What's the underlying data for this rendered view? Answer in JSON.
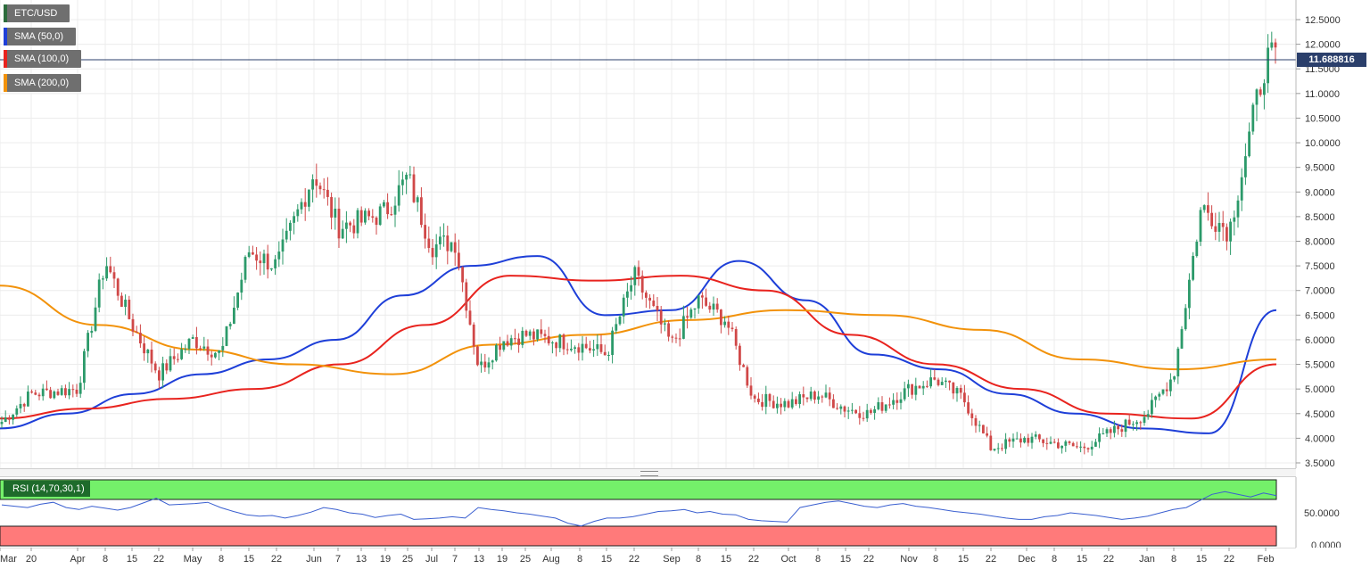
{
  "legend": {
    "symbol": "ETC/USD",
    "sma50": "SMA (50,0)",
    "sma100": "SMA (100,0)",
    "sma200": "SMA (200,0)",
    "rsi": "RSI (14,70,30,1)"
  },
  "current_price_label": "11.688816",
  "colors": {
    "bull": "#2c9a6a",
    "bear": "#d04848",
    "sma50": "#1e3fd8",
    "sma100": "#e8231e",
    "sma200": "#f2920a",
    "rsi_line": "#3a5fd0",
    "overbought_zone": "#74f06a",
    "oversold_zone": "#ff7a7a",
    "price_line": "#2b3f6b"
  },
  "chart_data": [
    {
      "type": "candlestick",
      "title": "ETC/USD",
      "ylim": [
        3.4,
        12.8
      ],
      "y_ticks": [
        "12.5000",
        "12.0000",
        "11.5000",
        "11.0000",
        "10.5000",
        "10.0000",
        "9.5000",
        "9.0000",
        "8.5000",
        "8.0000",
        "7.5000",
        "7.0000",
        "6.5000",
        "6.0000",
        "5.5000",
        "5.0000",
        "4.5000",
        "4.0000",
        "3.5000"
      ],
      "x_tick_labels": [
        "Mar",
        "20",
        "Apr",
        "8",
        "15",
        "22",
        "May",
        "8",
        "15",
        "22",
        "Jun",
        "7",
        "13",
        "19",
        "25",
        "Jul",
        "7",
        "13",
        "19",
        "25",
        "Aug",
        "8",
        "15",
        "22",
        "Sep",
        "8",
        "15",
        "22",
        "Oct",
        "8",
        "15",
        "22",
        "Nov",
        "8",
        "15",
        "22",
        "Dec",
        "8",
        "15",
        "22",
        "Jan",
        "8",
        "15",
        "22",
        "Feb"
      ],
      "series_close_anchors": [
        {
          "date": "Mar",
          "close": 4.3
        },
        {
          "date": "20",
          "close": 4.9
        },
        {
          "date": "Apr",
          "close": 5.0
        },
        {
          "date": "8",
          "close": 7.6
        },
        {
          "date": "15",
          "close": 6.3
        },
        {
          "date": "22",
          "close": 5.3
        },
        {
          "date": "May",
          "close": 6.0
        },
        {
          "date": "8",
          "close": 5.7
        },
        {
          "date": "15",
          "close": 7.8
        },
        {
          "date": "22",
          "close": 7.5
        },
        {
          "date": "Jun",
          "close": 9.4
        },
        {
          "date": "7",
          "close": 8.3
        },
        {
          "date": "13",
          "close": 8.4
        },
        {
          "date": "19",
          "close": 8.6
        },
        {
          "date": "25",
          "close": 9.3
        },
        {
          "date": "Jul",
          "close": 7.9
        },
        {
          "date": "7",
          "close": 8.0
        },
        {
          "date": "13",
          "close": 5.4
        },
        {
          "date": "19",
          "close": 6.0
        },
        {
          "date": "25",
          "close": 6.1
        },
        {
          "date": "Aug",
          "close": 6.0
        },
        {
          "date": "8",
          "close": 5.9
        },
        {
          "date": "15",
          "close": 5.7
        },
        {
          "date": "22",
          "close": 7.3
        },
        {
          "date": "Sep",
          "close": 5.9
        },
        {
          "date": "8",
          "close": 6.8
        },
        {
          "date": "15",
          "close": 6.4
        },
        {
          "date": "22",
          "close": 4.8
        },
        {
          "date": "Oct",
          "close": 4.7
        },
        {
          "date": "8",
          "close": 4.9
        },
        {
          "date": "15",
          "close": 4.6
        },
        {
          "date": "22",
          "close": 4.5
        },
        {
          "date": "Nov",
          "close": 5.0
        },
        {
          "date": "8",
          "close": 5.2
        },
        {
          "date": "15",
          "close": 4.8
        },
        {
          "date": "22",
          "close": 3.8
        },
        {
          "date": "Dec",
          "close": 4.0
        },
        {
          "date": "8",
          "close": 3.9
        },
        {
          "date": "15",
          "close": 3.8
        },
        {
          "date": "22",
          "close": 4.1
        },
        {
          "date": "Jan",
          "close": 4.5
        },
        {
          "date": "8",
          "close": 5.3
        },
        {
          "date": "15",
          "close": 8.7
        },
        {
          "date": "22",
          "close": 8.2
        },
        {
          "date": "Feb",
          "close": 11.69
        }
      ],
      "sma": [
        {
          "name": "SMA (50,0)",
          "values": [
            4.2,
            4.5,
            4.9,
            5.3,
            5.6,
            6.0,
            6.9,
            7.5,
            7.7,
            6.5,
            6.6,
            7.6,
            6.8,
            5.7,
            5.4,
            4.9,
            4.5,
            4.2,
            4.1,
            6.6
          ]
        },
        {
          "name": "SMA (100,0)",
          "values": [
            4.4,
            4.6,
            4.8,
            5.0,
            5.5,
            6.3,
            7.3,
            7.2,
            7.3,
            7.0,
            6.1,
            5.5,
            5.0,
            4.5,
            4.4,
            5.5
          ]
        },
        {
          "name": "SMA (200,0)",
          "values": [
            7.1,
            6.3,
            5.8,
            5.5,
            5.3,
            5.9,
            6.1,
            6.4,
            6.6,
            6.5,
            6.2,
            5.6,
            5.4,
            5.6
          ]
        }
      ]
    },
    {
      "type": "line",
      "title": "RSI (14,70,30,1)",
      "y_ticks": [
        "50.0000",
        "0.0000"
      ],
      "overbought": 70,
      "oversold": 30,
      "values": [
        62,
        60,
        58,
        63,
        66,
        58,
        55,
        60,
        57,
        54,
        58,
        65,
        72,
        62,
        63,
        64,
        66,
        58,
        52,
        47,
        45,
        46,
        42,
        46,
        51,
        58,
        55,
        50,
        48,
        43,
        46,
        48,
        40,
        41,
        42,
        44,
        42,
        58,
        55,
        53,
        50,
        48,
        45,
        42,
        34,
        30,
        37,
        42,
        42,
        44,
        48,
        52,
        53,
        55,
        50,
        52,
        48,
        47,
        40,
        38,
        37,
        36,
        58,
        62,
        66,
        68,
        64,
        60,
        58,
        62,
        64,
        60,
        58,
        55,
        52,
        50,
        48,
        45,
        42,
        40,
        40,
        44,
        46,
        50,
        48,
        46,
        43,
        40,
        42,
        45,
        50,
        55,
        58,
        68,
        78,
        82,
        78,
        74,
        80,
        76
      ]
    }
  ]
}
